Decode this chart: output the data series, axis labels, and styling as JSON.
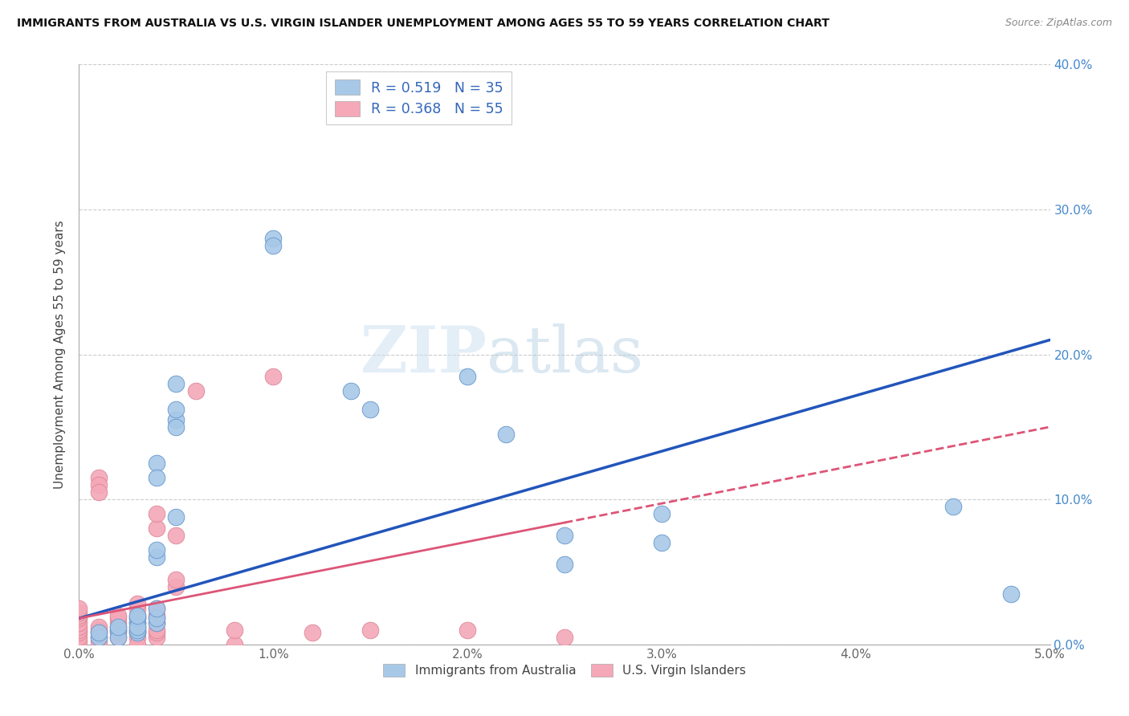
{
  "title": "IMMIGRANTS FROM AUSTRALIA VS U.S. VIRGIN ISLANDER UNEMPLOYMENT AMONG AGES 55 TO 59 YEARS CORRELATION CHART",
  "source": "Source: ZipAtlas.com",
  "ylabel": "Unemployment Among Ages 55 to 59 years",
  "xlim": [
    0.0,
    0.05
  ],
  "ylim": [
    0.0,
    0.4
  ],
  "xticks": [
    0.0,
    0.01,
    0.02,
    0.03,
    0.04,
    0.05
  ],
  "yticks": [
    0.0,
    0.1,
    0.2,
    0.3,
    0.4
  ],
  "xtick_labels": [
    "0.0%",
    "1.0%",
    "2.0%",
    "3.0%",
    "4.0%",
    "5.0%"
  ],
  "ytick_labels": [
    "0.0%",
    "10.0%",
    "20.0%",
    "30.0%",
    "40.0%"
  ],
  "australia_R": 0.519,
  "australia_N": 35,
  "virgin_R": 0.368,
  "virgin_N": 55,
  "australia_color": "#a8c8e8",
  "virgin_color": "#f4a8b8",
  "australia_line_color": "#2255bb",
  "virgin_line_color": "#dd5577",
  "watermark_zip": "ZIP",
  "watermark_atlas": "atlas",
  "australia_points": [
    [
      0.001,
      0.005
    ],
    [
      0.001,
      0.008
    ],
    [
      0.002,
      0.01
    ],
    [
      0.002,
      0.005
    ],
    [
      0.002,
      0.012
    ],
    [
      0.003,
      0.015
    ],
    [
      0.003,
      0.008
    ],
    [
      0.003,
      0.01
    ],
    [
      0.003,
      0.018
    ],
    [
      0.003,
      0.012
    ],
    [
      0.003,
      0.02
    ],
    [
      0.004,
      0.125
    ],
    [
      0.004,
      0.115
    ],
    [
      0.004,
      0.06
    ],
    [
      0.004,
      0.065
    ],
    [
      0.004,
      0.015
    ],
    [
      0.004,
      0.018
    ],
    [
      0.004,
      0.025
    ],
    [
      0.005,
      0.18
    ],
    [
      0.005,
      0.155
    ],
    [
      0.005,
      0.162
    ],
    [
      0.005,
      0.088
    ],
    [
      0.005,
      0.15
    ],
    [
      0.01,
      0.28
    ],
    [
      0.01,
      0.275
    ],
    [
      0.014,
      0.175
    ],
    [
      0.015,
      0.162
    ],
    [
      0.02,
      0.185
    ],
    [
      0.022,
      0.145
    ],
    [
      0.025,
      0.075
    ],
    [
      0.025,
      0.055
    ],
    [
      0.03,
      0.09
    ],
    [
      0.03,
      0.07
    ],
    [
      0.045,
      0.095
    ],
    [
      0.048,
      0.035
    ]
  ],
  "virgin_points": [
    [
      0.0,
      0.002
    ],
    [
      0.0,
      0.005
    ],
    [
      0.0,
      0.008
    ],
    [
      0.0,
      0.01
    ],
    [
      0.0,
      0.012
    ],
    [
      0.0,
      0.015
    ],
    [
      0.0,
      0.018
    ],
    [
      0.0,
      0.02
    ],
    [
      0.0,
      0.022
    ],
    [
      0.0,
      0.025
    ],
    [
      0.001,
      0.002
    ],
    [
      0.001,
      0.005
    ],
    [
      0.001,
      0.008
    ],
    [
      0.001,
      0.01
    ],
    [
      0.001,
      0.012
    ],
    [
      0.001,
      0.115
    ],
    [
      0.001,
      0.11
    ],
    [
      0.001,
      0.105
    ],
    [
      0.002,
      0.005
    ],
    [
      0.002,
      0.008
    ],
    [
      0.002,
      0.01
    ],
    [
      0.002,
      0.012
    ],
    [
      0.002,
      0.015
    ],
    [
      0.002,
      0.018
    ],
    [
      0.002,
      0.02
    ],
    [
      0.003,
      0.005
    ],
    [
      0.003,
      0.008
    ],
    [
      0.003,
      0.01
    ],
    [
      0.003,
      0.012
    ],
    [
      0.003,
      0.015
    ],
    [
      0.003,
      0.018
    ],
    [
      0.003,
      0.02
    ],
    [
      0.003,
      0.025
    ],
    [
      0.003,
      0.028
    ],
    [
      0.003,
      0.0
    ],
    [
      0.004,
      0.005
    ],
    [
      0.004,
      0.008
    ],
    [
      0.004,
      0.01
    ],
    [
      0.004,
      0.015
    ],
    [
      0.004,
      0.018
    ],
    [
      0.004,
      0.02
    ],
    [
      0.004,
      0.025
    ],
    [
      0.004,
      0.08
    ],
    [
      0.004,
      0.09
    ],
    [
      0.005,
      0.04
    ],
    [
      0.005,
      0.045
    ],
    [
      0.005,
      0.075
    ],
    [
      0.006,
      0.175
    ],
    [
      0.008,
      0.0
    ],
    [
      0.008,
      0.01
    ],
    [
      0.01,
      0.185
    ],
    [
      0.012,
      0.008
    ],
    [
      0.015,
      0.01
    ],
    [
      0.02,
      0.01
    ],
    [
      0.025,
      0.005
    ]
  ]
}
